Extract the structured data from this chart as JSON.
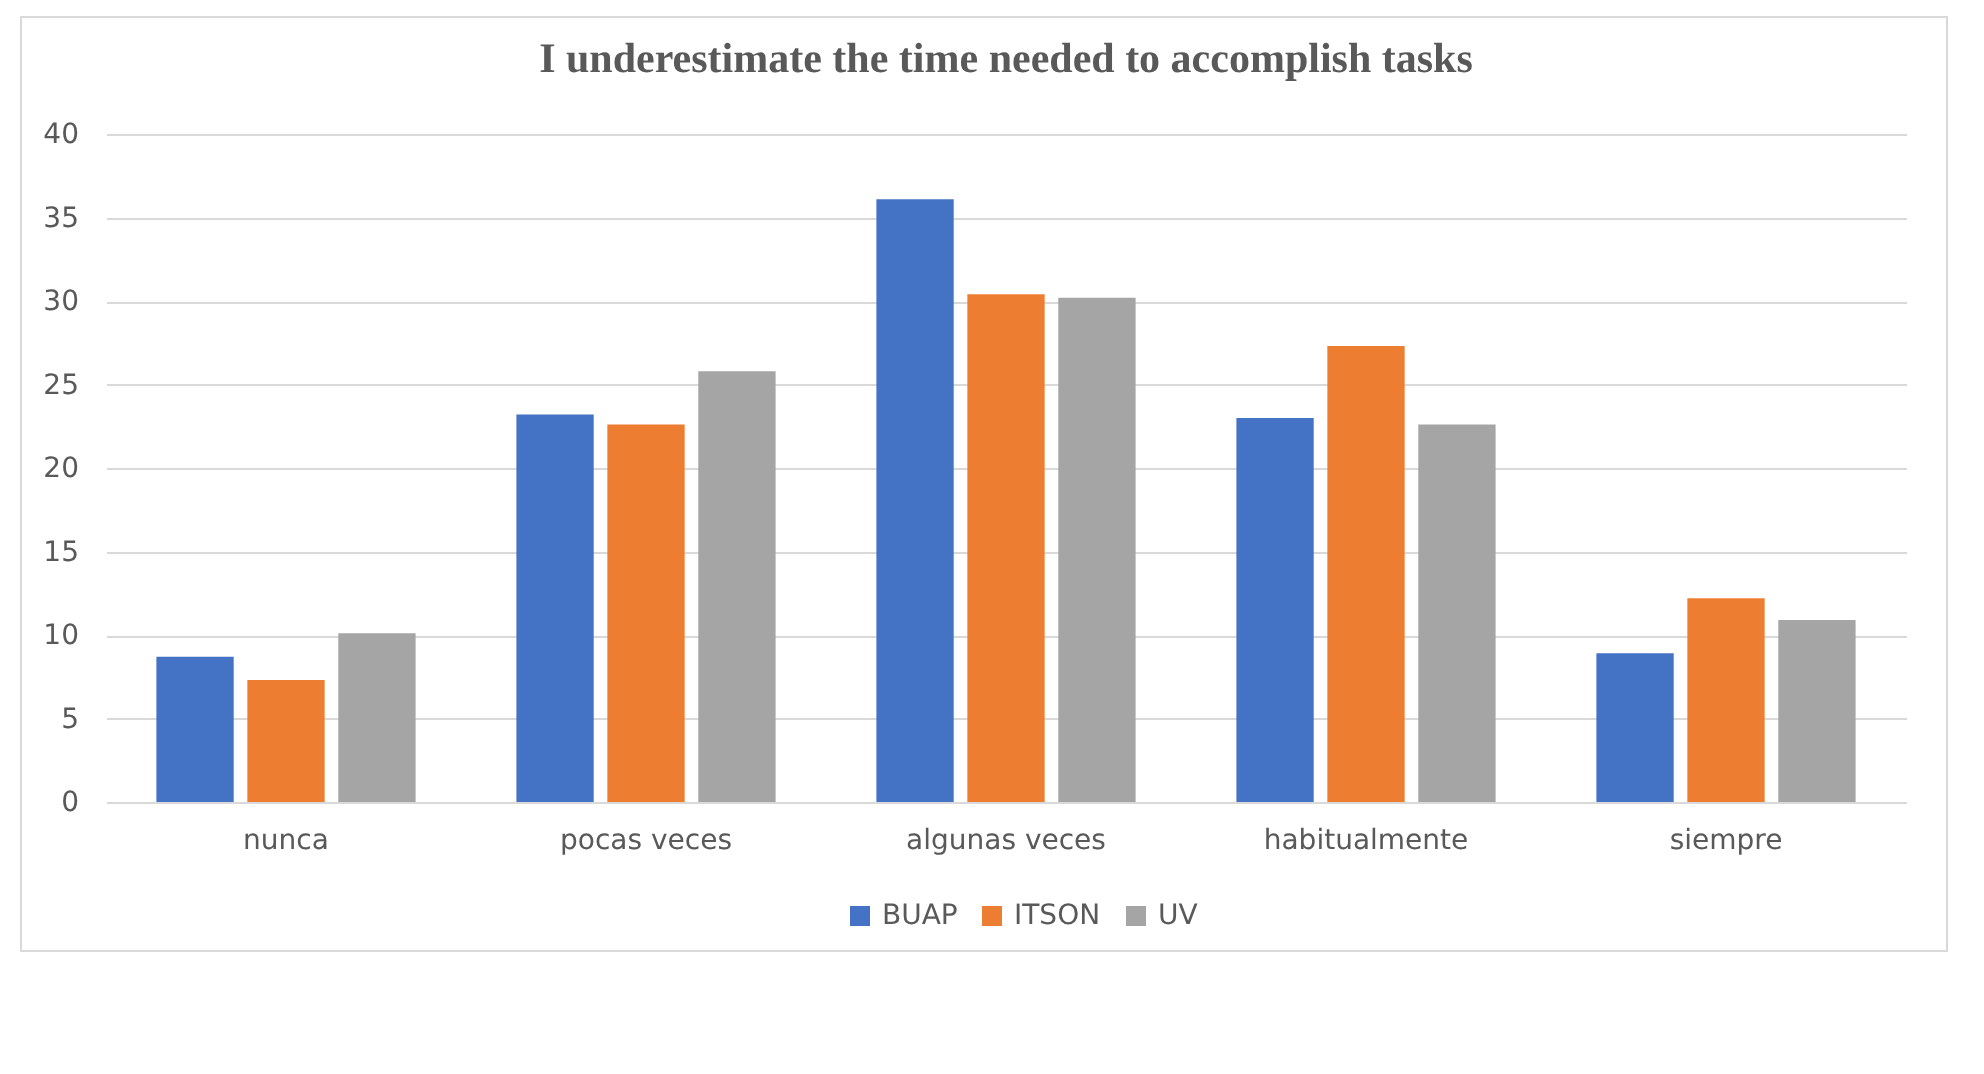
{
  "chart_data": {
    "type": "bar",
    "title": "I underestimate the time needed to accomplish tasks",
    "categories": [
      "nunca",
      "pocas veces",
      "algunas veces",
      "habitualmente",
      "siempre"
    ],
    "series": [
      {
        "name": "BUAP",
        "color": "#4472c4",
        "values": [
          8.7,
          23.2,
          36.1,
          23.0,
          8.9
        ]
      },
      {
        "name": "ITSON",
        "color": "#ed7d31",
        "values": [
          7.3,
          22.6,
          30.4,
          27.3,
          12.2
        ]
      },
      {
        "name": "UV",
        "color": "#a5a5a5",
        "values": [
          10.1,
          25.8,
          30.2,
          22.6,
          10.9
        ]
      }
    ],
    "ylim": [
      0,
      40
    ],
    "yticks": [
      0,
      5,
      10,
      15,
      20,
      25,
      30,
      35,
      40
    ],
    "grid": "y",
    "legend": "bottom"
  }
}
